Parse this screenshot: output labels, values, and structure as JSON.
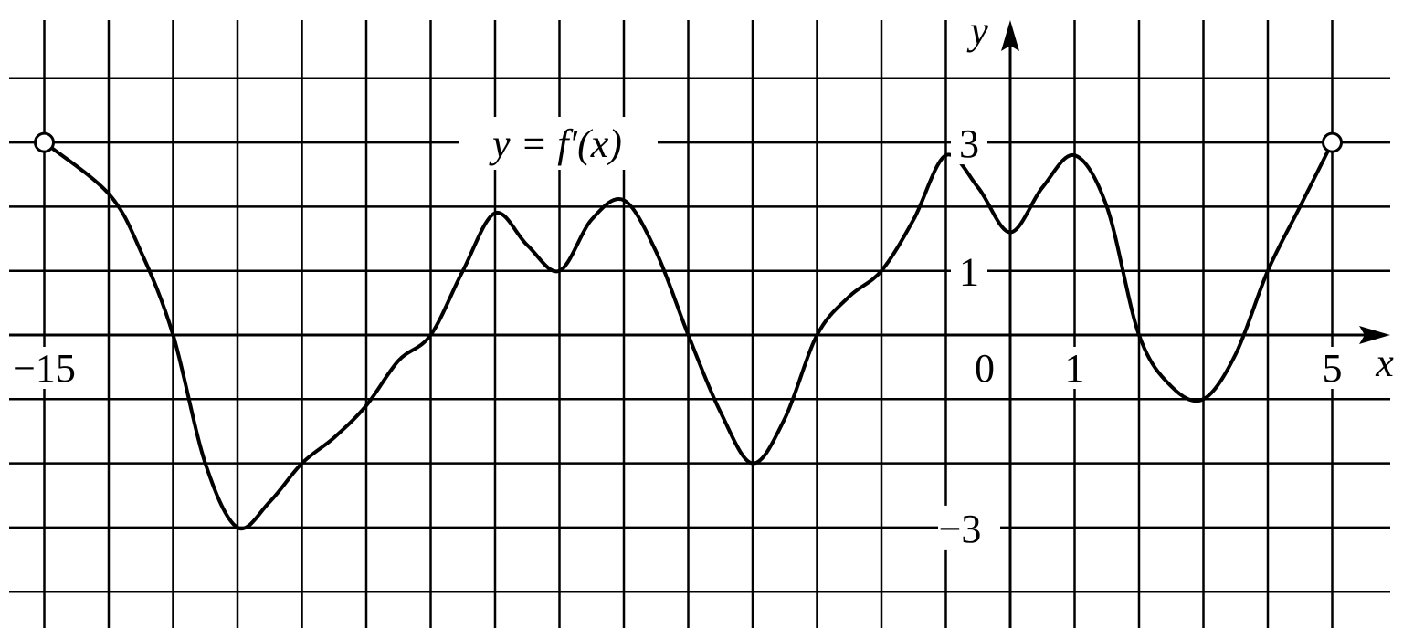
{
  "chart_data": {
    "type": "line",
    "title": "",
    "curve_label": "y = f′(x)",
    "xlabel": "x",
    "ylabel": "y",
    "xlim": [
      -15.6,
      5.9
    ],
    "ylim": [
      -4.6,
      5.0
    ],
    "grid": true,
    "x_tick_labels": [
      {
        "value": -15,
        "label": "−15"
      },
      {
        "value": 0,
        "label": "0"
      },
      {
        "value": 1,
        "label": "1"
      },
      {
        "value": 5,
        "label": "5"
      }
    ],
    "y_tick_labels": [
      {
        "value": 3,
        "label": "3"
      },
      {
        "value": 1,
        "label": "1"
      },
      {
        "value": -3,
        "label": "−3"
      }
    ],
    "endpoints": [
      {
        "x": -15,
        "y": 3,
        "open": true
      },
      {
        "x": 5,
        "y": 3,
        "open": true
      }
    ],
    "series": [
      {
        "x": [
          -15,
          -14,
          -13.5,
          -13,
          -12.5,
          -12,
          -11.5,
          -11,
          -10.5,
          -10,
          -9.5,
          -9,
          -8.5,
          -8,
          -7.5,
          -7,
          -6.5,
          -6,
          -5.5,
          -5,
          -4.5,
          -4,
          -3.5,
          -3,
          -2.5,
          -2,
          -1.5,
          -1,
          -0.5,
          0,
          0.5,
          1,
          1.5,
          2,
          2.5,
          3,
          3.5,
          4,
          4.5,
          5
        ],
        "y": [
          3,
          2.2,
          1.3,
          0,
          -2.0,
          -3,
          -2.6,
          -2.0,
          -1.6,
          -1.1,
          -0.4,
          0,
          1.0,
          1.9,
          1.4,
          1.0,
          1.8,
          2.1,
          1.3,
          0,
          -1.2,
          -2,
          -1.3,
          0,
          0.6,
          1.0,
          1.8,
          2.8,
          2.3,
          1.6,
          2.3,
          2.8,
          2.0,
          0,
          -0.8,
          -1,
          -0.3,
          1,
          2.0,
          3
        ]
      }
    ],
    "colors": {
      "curve": "#000000",
      "grid": "#000000",
      "background": "#ffffff"
    }
  }
}
